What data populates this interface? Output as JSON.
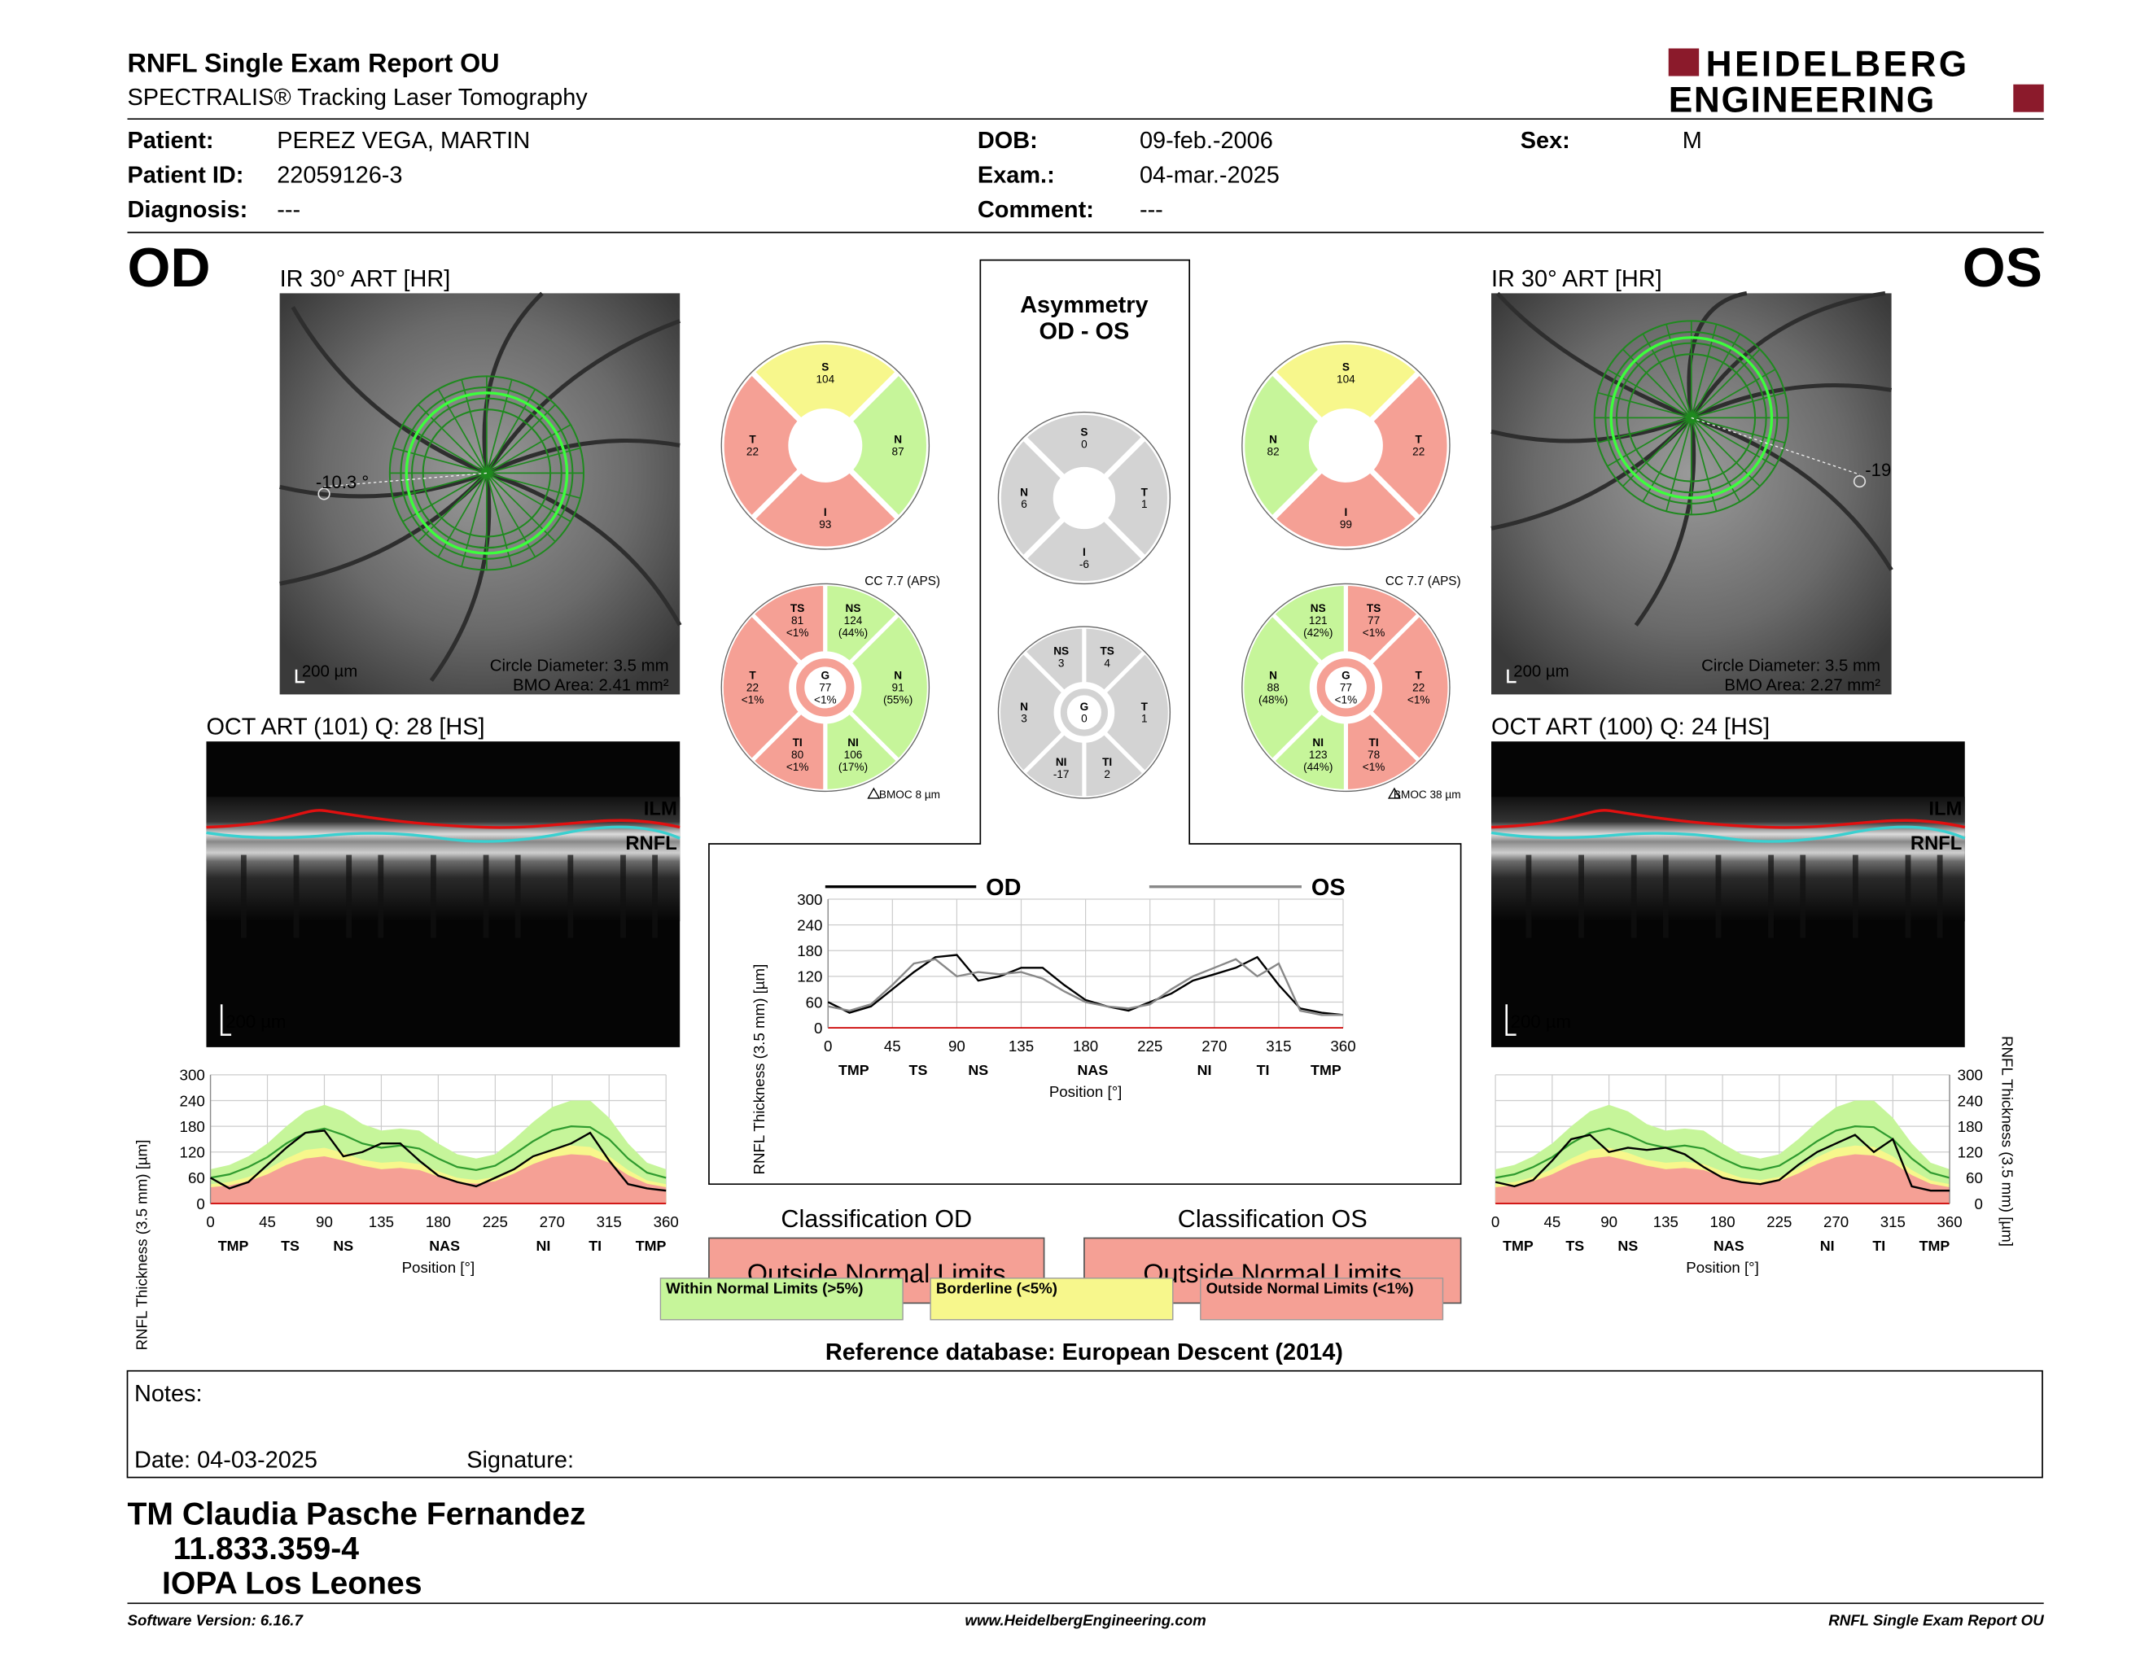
{
  "header": {
    "title": "RNFL Single Exam Report OU",
    "subtitle": "SPECTRALIS® Tracking Laser Tomography",
    "logo": [
      "HEIDELBERG",
      "ENGINEERING"
    ]
  },
  "patient": [
    {
      "label": "Patient:",
      "value": "PEREZ VEGA, MARTIN"
    },
    {
      "label": "DOB:",
      "value": "09-feb.-2006"
    },
    {
      "label": "Sex:",
      "value": "M"
    },
    {
      "label": "Patient ID:",
      "value": "22059126-3"
    },
    {
      "label": "Exam.:",
      "value": "04-mar.-2025"
    },
    {
      "label": "Diagnosis:",
      "value": "---"
    },
    {
      "label": "Comment:",
      "value": "---"
    }
  ],
  "eyes": [
    {
      "label": "OD",
      "ir": {
        "title": "IR 30° ART [HR]",
        "angle": "-10.3 °",
        "scale": "200 µm",
        "circle": "Circle Diameter: 3.5 mm",
        "bmo": "BMO Area: 2.41 mm²"
      },
      "oct": {
        "title": "OCT ART (101) Q: 28 [HS]",
        "ilm": "ILM",
        "rnfl": "RNFL",
        "scale": "200 µm"
      },
      "sectors4": [
        {
          "label": "S",
          "value": 104,
          "color": "#f7f78c"
        },
        {
          "label": "N",
          "value": 87,
          "color": "#c6f59a"
        },
        {
          "label": "I",
          "value": 93,
          "color": "#f5a095"
        },
        {
          "label": "T",
          "value": 22,
          "color": "#f5a095"
        }
      ],
      "sectors6": [
        {
          "label": "TS",
          "value": 81,
          "class": "<1%",
          "color": "#f5a095"
        },
        {
          "label": "NS",
          "value": 124,
          "class": "(44%)",
          "color": "#c6f59a"
        },
        {
          "label": "N",
          "value": 91,
          "class": "(55%)",
          "color": "#c6f59a"
        },
        {
          "label": "NI",
          "value": 106,
          "class": "(17%)",
          "color": "#c6f59a"
        },
        {
          "label": "TI",
          "value": 80,
          "class": "<1%",
          "color": "#f5a095"
        },
        {
          "label": "T",
          "value": 22,
          "class": "<1%",
          "color": "#f5a095"
        },
        {
          "label": "G",
          "value": 77,
          "class": "<1%",
          "color": "#f5a095"
        }
      ],
      "cc": "CC 7.7 (APS)",
      "bmoc": "BMOC 8 µm",
      "chart": {
        "type": "line",
        "ylabel": "RNFL Thickness (3.5 mm) [µm]",
        "xlabel": "Position [°]",
        "xlim": [
          0,
          360
        ],
        "ylim": [
          0,
          300
        ],
        "xticks": [
          0,
          45,
          90,
          135,
          180,
          225,
          270,
          315,
          360
        ],
        "yticks": [
          0,
          60,
          120,
          180,
          240,
          300
        ],
        "grid": true,
        "categories": [
          "TMP",
          "TS",
          "NS",
          "NAS",
          "NI",
          "TI",
          "TMP"
        ],
        "x": [
          0,
          15,
          30,
          45,
          60,
          75,
          90,
          105,
          120,
          135,
          150,
          165,
          180,
          195,
          210,
          225,
          240,
          255,
          270,
          285,
          300,
          315,
          330,
          345,
          360
        ],
        "bands": [
          {
            "color": "#c6f59a",
            "values": [
              80,
              90,
              110,
              140,
              180,
              215,
              230,
              215,
              185,
              170,
              175,
              170,
              140,
              115,
              105,
              115,
              150,
              190,
              225,
              240,
              240,
              200,
              140,
              95,
              80
            ]
          },
          {
            "color": "#f7f78c",
            "values": [
              45,
              50,
              62,
              80,
              105,
              125,
              130,
              118,
              102,
              95,
              98,
              92,
              75,
              60,
              55,
              62,
              82,
              108,
              128,
              135,
              132,
              110,
              78,
              54,
              45
            ]
          },
          {
            "color": "#f5a095",
            "values": [
              38,
              42,
              52,
              68,
              90,
              105,
              110,
              100,
              88,
              80,
              83,
              78,
              63,
              50,
              46,
              52,
              70,
              92,
              108,
              115,
              112,
              95,
              66,
              46,
              38
            ]
          }
        ],
        "mean": {
          "color": "#2e9a2e",
          "values": [
            60,
            68,
            85,
            108,
            140,
            165,
            175,
            160,
            140,
            130,
            135,
            128,
            105,
            85,
            78,
            88,
            115,
            145,
            170,
            180,
            178,
            150,
            105,
            72,
            60
          ]
        },
        "series": [
          {
            "color": "#000000",
            "values": [
              60,
              35,
              50,
              90,
              130,
              165,
              170,
              110,
              120,
              140,
              140,
              100,
              65,
              50,
              40,
              60,
              80,
              110,
              125,
              140,
              165,
              100,
              45,
              35,
              30
            ]
          }
        ]
      }
    },
    {
      "label": "OS",
      "ir": {
        "title": "IR 30° ART [HR]",
        "angle": "-19",
        "scale": "200 µm",
        "circle": "Circle Diameter: 3.5 mm",
        "bmo": "BMO Area: 2.27 mm²"
      },
      "oct": {
        "title": "OCT ART (100) Q: 24 [HS]",
        "ilm": "ILM",
        "rnfl": "RNFL",
        "scale": "200 µm"
      },
      "sectors4": [
        {
          "label": "S",
          "value": 104,
          "color": "#f7f78c"
        },
        {
          "label": "T",
          "value": 22,
          "color": "#f5a095"
        },
        {
          "label": "I",
          "value": 99,
          "color": "#f5a095"
        },
        {
          "label": "N",
          "value": 82,
          "color": "#c6f59a"
        }
      ],
      "sectors6": [
        {
          "label": "NS",
          "value": 121,
          "class": "(42%)",
          "color": "#c6f59a"
        },
        {
          "label": "TS",
          "value": 77,
          "class": "<1%",
          "color": "#f5a095"
        },
        {
          "label": "T",
          "value": 22,
          "class": "<1%",
          "color": "#f5a095"
        },
        {
          "label": "TI",
          "value": 78,
          "class": "<1%",
          "color": "#f5a095"
        },
        {
          "label": "NI",
          "value": 123,
          "class": "(44%)",
          "color": "#c6f59a"
        },
        {
          "label": "N",
          "value": 88,
          "class": "(48%)",
          "color": "#c6f59a"
        },
        {
          "label": "G",
          "value": 77,
          "class": "<1%",
          "color": "#f5a095"
        }
      ],
      "cc": "CC 7.7 (APS)",
      "bmoc": "BMOC 38 µm",
      "chart": {
        "type": "line",
        "ylabel": "RNFL Thickness (3.5 mm) [µm]",
        "xlabel": "Position [°]",
        "xlim": [
          0,
          360
        ],
        "ylim": [
          0,
          300
        ],
        "xticks": [
          0,
          45,
          90,
          135,
          180,
          225,
          270,
          315,
          360
        ],
        "yticks": [
          0,
          60,
          120,
          180,
          240,
          300
        ],
        "grid": true,
        "categories": [
          "TMP",
          "TS",
          "NS",
          "NAS",
          "NI",
          "TI",
          "TMP"
        ],
        "x": [
          0,
          15,
          30,
          45,
          60,
          75,
          90,
          105,
          120,
          135,
          150,
          165,
          180,
          195,
          210,
          225,
          240,
          255,
          270,
          285,
          300,
          315,
          330,
          345,
          360
        ],
        "bands": [
          {
            "color": "#c6f59a",
            "values": [
              80,
              90,
              110,
              140,
              180,
              215,
              230,
              215,
              185,
              170,
              175,
              170,
              140,
              115,
              105,
              115,
              150,
              190,
              225,
              240,
              240,
              200,
              140,
              95,
              80
            ]
          },
          {
            "color": "#f7f78c",
            "values": [
              45,
              50,
              62,
              80,
              105,
              125,
              130,
              118,
              102,
              95,
              98,
              92,
              75,
              60,
              55,
              62,
              82,
              108,
              128,
              135,
              132,
              110,
              78,
              54,
              45
            ]
          },
          {
            "color": "#f5a095",
            "values": [
              38,
              42,
              52,
              68,
              90,
              105,
              110,
              100,
              88,
              80,
              83,
              78,
              63,
              50,
              46,
              52,
              70,
              92,
              108,
              115,
              112,
              95,
              66,
              46,
              38
            ]
          }
        ],
        "mean": {
          "color": "#2e9a2e",
          "values": [
            60,
            68,
            85,
            108,
            140,
            165,
            175,
            160,
            140,
            130,
            135,
            128,
            105,
            85,
            78,
            88,
            115,
            145,
            170,
            180,
            178,
            150,
            105,
            72,
            60
          ]
        },
        "series": [
          {
            "color": "#000000",
            "values": [
              50,
              40,
              55,
              100,
              150,
              160,
              120,
              130,
              125,
              130,
              115,
              85,
              60,
              50,
              45,
              55,
              90,
              120,
              140,
              160,
              120,
              150,
              40,
              30,
              30
            ]
          }
        ]
      }
    }
  ],
  "asymmetry": {
    "title": [
      "Asymmetry",
      "OD - OS"
    ],
    "sectors4": [
      {
        "label": "S",
        "value": 0,
        "color": "#d3d3d3"
      },
      {
        "label": "T",
        "value": 1,
        "color": "#d3d3d3"
      },
      {
        "label": "I",
        "value": -6,
        "color": "#d3d3d3"
      },
      {
        "label": "N",
        "value": 6,
        "color": "#d3d3d3"
      }
    ],
    "sectors6": [
      {
        "label": "NS",
        "value": 3,
        "color": "#d3d3d3"
      },
      {
        "label": "TS",
        "value": 4,
        "color": "#d3d3d3"
      },
      {
        "label": "T",
        "value": 1,
        "color": "#d3d3d3"
      },
      {
        "label": "TI",
        "value": 2,
        "color": "#d3d3d3"
      },
      {
        "label": "NI",
        "value": -17,
        "color": "#d3d3d3"
      },
      {
        "label": "N",
        "value": 3,
        "color": "#d3d3d3"
      },
      {
        "label": "G",
        "value": 0,
        "color": "#d3d3d3"
      }
    ],
    "chart": {
      "type": "line",
      "ylabel": "RNFL Thickness (3.5 mm) [µm]",
      "xlabel": "Position [°]",
      "xlim": [
        0,
        360
      ],
      "ylim": [
        0,
        300
      ],
      "xticks": [
        0,
        45,
        90,
        135,
        180,
        225,
        270,
        315,
        360
      ],
      "yticks": [
        0,
        60,
        120,
        180,
        240,
        300
      ],
      "grid": true,
      "categories": [
        "TMP",
        "TS",
        "NS",
        "NAS",
        "NI",
        "TI",
        "TMP"
      ],
      "x": [
        0,
        15,
        30,
        45,
        60,
        75,
        90,
        105,
        120,
        135,
        150,
        165,
        180,
        195,
        210,
        225,
        240,
        255,
        270,
        285,
        300,
        315,
        330,
        345,
        360
      ],
      "series": [
        {
          "name": "OD",
          "color": "#000000",
          "values": [
            60,
            35,
            50,
            90,
            130,
            165,
            170,
            110,
            120,
            140,
            140,
            100,
            65,
            50,
            40,
            60,
            80,
            110,
            125,
            140,
            165,
            100,
            45,
            35,
            30
          ]
        },
        {
          "name": "OS",
          "color": "#888888",
          "values": [
            50,
            40,
            55,
            100,
            150,
            160,
            120,
            130,
            125,
            130,
            115,
            85,
            60,
            50,
            45,
            55,
            90,
            120,
            140,
            160,
            120,
            150,
            40,
            30,
            30
          ]
        }
      ]
    }
  },
  "classification": [
    {
      "title": "Classification OD",
      "result": "Outside Normal Limits",
      "color": "#f5a095"
    },
    {
      "title": "Classification OS",
      "result": "Outside Normal Limits",
      "color": "#f5a095"
    }
  ],
  "legend": [
    {
      "label": "Within Normal Limits (>5%)",
      "color": "#c6f59a"
    },
    {
      "label": "Borderline (<5%)",
      "color": "#f7f78c"
    },
    {
      "label": "Outside Normal Limits (<1%)",
      "color": "#f5a095"
    }
  ],
  "reference": "Reference database: European Descent (2014)",
  "notes": {
    "label": "Notes:",
    "date": "Date: 04-03-2025",
    "signature": "Signature:"
  },
  "operator": [
    "TM Claudia Pasche Fernandez",
    "11.833.359-4",
    "IOPA Los Leones"
  ],
  "footer": [
    "Software Version: 6.16.7",
    "www.HeidelbergEngineering.com",
    "RNFL Single Exam Report OU"
  ]
}
